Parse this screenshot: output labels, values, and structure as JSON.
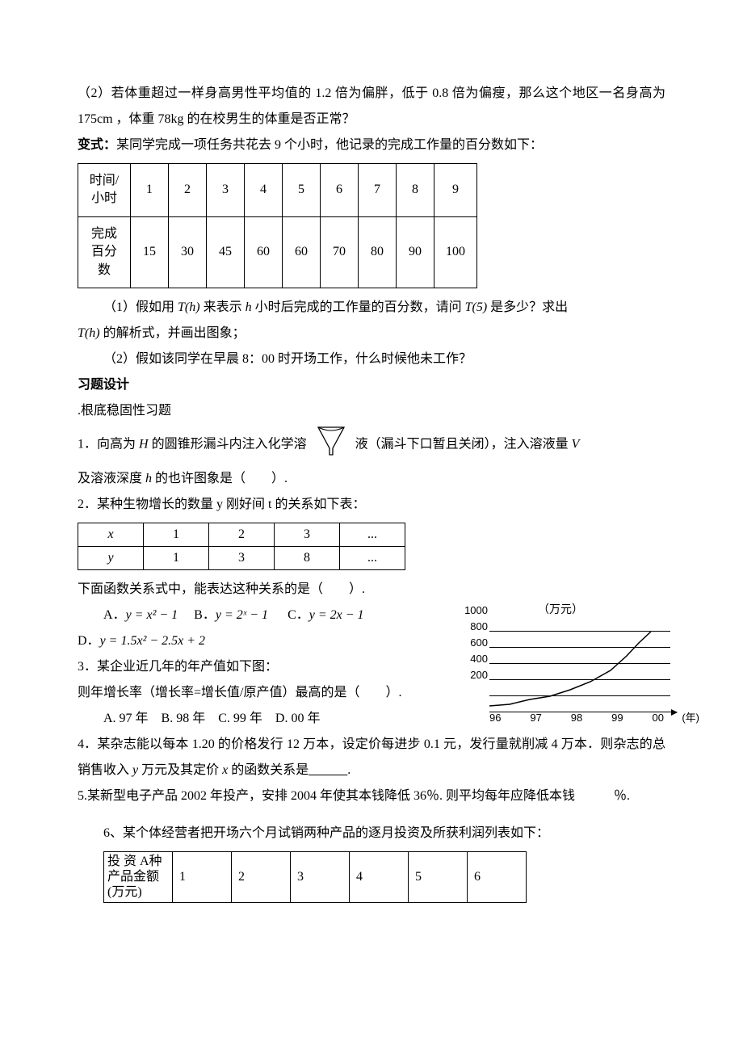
{
  "p1": "（2）若体重超过一样身高男性平均值的 1.2 倍为偏胖，低于 0.8 倍为偏瘦，那么这个地区一名身高为 175cm ，体重 78kg 的在校男生的体重是否正常？",
  "p2_prefix": "变式：",
  "p2": "某同学完成一项任务共花去 9 个小时，他记录的完成工作量的百分数如下：",
  "tbl1": {
    "row1_h": "时间/\n小时",
    "row1": [
      "1",
      "2",
      "3",
      "4",
      "5",
      "6",
      "7",
      "8",
      "9"
    ],
    "row2_h": "完成\n百分\n数",
    "row2": [
      "15",
      "30",
      "45",
      "60",
      "60",
      "70",
      "80",
      "90",
      "100"
    ]
  },
  "p3a": "（1）假如用 ",
  "p3b": " 来表示 ",
  "p3c": " 小时后完成的工作量的百分数，请问 ",
  "p3d": " 是多少？求出",
  "fn_Th": "T(h)",
  "fn_h": "h",
  "fn_T5": "T(5)",
  "p4a": "",
  "p4b": " 的解析式，并画出图象；",
  "p5": "（2）假如该同学在早晨 8：00 时开场工作，什么时候他未工作？",
  "hdr_xiti": "习题设计",
  "p6": ".根底稳固性习题",
  "q1a": "1．向高为 ",
  "q1_H": "H",
  "q1b": " 的圆锥形漏斗内注入化学溶",
  "q1c": "液（漏斗下口暂且关闭），注入溶液量 ",
  "q1_V": "V",
  "q1d": "及溶液深度 ",
  "q1_hh": "h",
  "q1e": " 的也许图象是（　　）.",
  "q2": "2．某种生物增长的数量 y 刚好间 t 的关系如下表：",
  "tbl2": {
    "r1": [
      "x",
      "1",
      "2",
      "3",
      "..."
    ],
    "r2": [
      "y",
      "1",
      "3",
      "8",
      "..."
    ]
  },
  "q2b": "下面函数关系式中，能表达这种关系的是（　　）.",
  "optsA": "A．",
  "optAeq": "y = x² − 1",
  "optsB": "B．",
  "optBeq": "y = 2ˣ − 1",
  "optsC": "C．",
  "optCeq": "y = 2x − 1",
  "optsD": "D．",
  "optDeq": "y = 1.5x² − 2.5x + 2",
  "chart": {
    "ylabel": "（万元）",
    "yticks": [
      "200",
      "400",
      "600",
      "800",
      "1000"
    ],
    "yvals": [
      200,
      400,
      600,
      800,
      1000
    ],
    "ymax": 1000,
    "xticks": [
      "96",
      "97",
      "98",
      "99",
      "00"
    ],
    "xunit": "(年)",
    "points": [
      [
        0,
        80
      ],
      [
        0.5,
        100
      ],
      [
        1,
        160
      ],
      [
        1.5,
        200
      ],
      [
        2,
        280
      ],
      [
        2.5,
        380
      ],
      [
        3,
        520
      ],
      [
        3.4,
        700
      ],
      [
        3.7,
        860
      ],
      [
        4,
        1000
      ]
    ],
    "line_color": "#000000",
    "grid_color": "#000000",
    "background": "#ffffff"
  },
  "q3": "3．某企业近几年的年产值如下图：",
  "q3b": "则年增长率（增长率=增长值/原产值）最高的是（　　）.",
  "q3opts": "A. 97 年　B. 98 年　C. 99 年　D. 00 年",
  "q4a": "4．某杂志能以每本 1.20 的价格发行 12 万本，设定价每进步 0.1 元，发行量就削减 4 万本．则杂志的总销售收入 ",
  "q4y": "y",
  "q4b": " 万元及其定价 ",
  "q4x": "x",
  "q4c": " 的函数关系是",
  "q4blank": "　　　",
  "q4d": ".",
  "q5": "5.某新型电子产品 2002 年投产，安排 2004 年使其本钱降低 36％. 则平均每年应降低本钱　　　％.",
  "q6a": "6、某个体经营者把开场六个月试销两种产品的逐月投资及所获利润列表如下：",
  "tbl3": {
    "hd": "投 资 A种产品金额(万元)",
    "cols": [
      "1",
      "2",
      "3",
      "4",
      "5",
      "6"
    ]
  }
}
